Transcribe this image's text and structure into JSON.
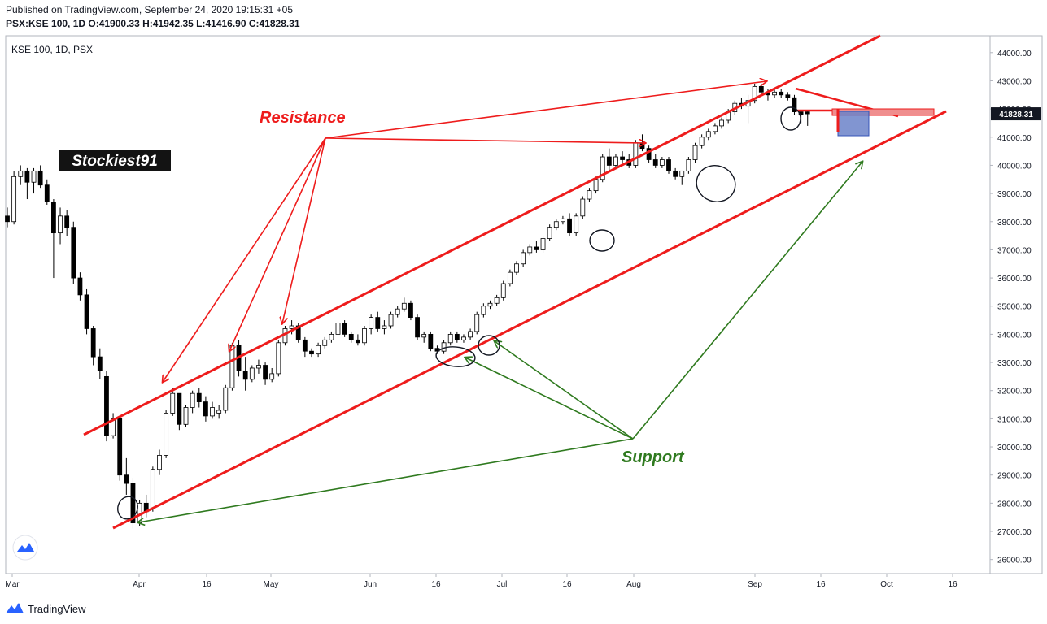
{
  "header": {
    "published": "Published on TradingView.com, September 24, 2020 19:15:31 +05",
    "ohlc": "PSX:KSE 100, 1D O:41900.33 H:41942.35 L:41416.90 C:41828.31"
  },
  "chart_data": {
    "type": "candlestick",
    "title": "KSE 100, 1D, PSX",
    "ylim": [
      25500,
      44600
    ],
    "y_ticks": [
      26000,
      27000,
      28000,
      29000,
      30000,
      31000,
      32000,
      33000,
      34000,
      35000,
      36000,
      37000,
      38000,
      39000,
      40000,
      41000,
      42000,
      43000,
      44000
    ],
    "y_tick_labels": [
      "26000.00",
      "27000.00",
      "28000.00",
      "29000.00",
      "30000.00",
      "31000.00",
      "32000.00",
      "33000.00",
      "34000.00",
      "35000.00",
      "36000.00",
      "37000.00",
      "38000.00",
      "39000.00",
      "40000.00",
      "41000.00",
      "42000.00",
      "43000.00",
      "44000.00"
    ],
    "x_tick_labels": [
      "Mar",
      "Apr",
      "16",
      "May",
      "Jun",
      "16",
      "Jul",
      "16",
      "Aug",
      "Sep",
      "16",
      "Oct",
      "16"
    ],
    "last_price_label": "41828.31",
    "last_price": 41828.31,
    "watermark": "Stockiest91",
    "annotations": {
      "resistance": "Resistance",
      "support": "Support"
    },
    "candles": [
      [
        38200,
        38500,
        37800,
        38000
      ],
      [
        38000,
        39800,
        37900,
        39600
      ],
      [
        39600,
        40000,
        39300,
        39800
      ],
      [
        39800,
        39900,
        38800,
        39400
      ],
      [
        39400,
        39900,
        39000,
        39800
      ],
      [
        39800,
        40000,
        39200,
        39300
      ],
      [
        39300,
        39500,
        38600,
        38700
      ],
      [
        38700,
        38800,
        36000,
        37600
      ],
      [
        37600,
        38500,
        37200,
        38200
      ],
      [
        38200,
        38400,
        37500,
        37800
      ],
      [
        37800,
        38000,
        35800,
        36000
      ],
      [
        36000,
        36200,
        35200,
        35400
      ],
      [
        35400,
        35600,
        34000,
        34200
      ],
      [
        34200,
        34300,
        32900,
        33200
      ],
      [
        33200,
        33500,
        32400,
        32700
      ],
      [
        32500,
        32700,
        30200,
        30400
      ],
      [
        30400,
        31200,
        30300,
        31000
      ],
      [
        31000,
        31100,
        28800,
        29000
      ],
      [
        29000,
        29600,
        28300,
        28700
      ],
      [
        28700,
        28900,
        27100,
        27300
      ],
      [
        27300,
        28100,
        27200,
        28000
      ],
      [
        28000,
        28300,
        27500,
        27700
      ],
      [
        27800,
        29300,
        27700,
        29200
      ],
      [
        29200,
        29900,
        29000,
        29700
      ],
      [
        29700,
        31300,
        29600,
        31200
      ],
      [
        31200,
        32100,
        31100,
        31900
      ],
      [
        31900,
        31900,
        30600,
        30800
      ],
      [
        30800,
        31500,
        30700,
        31400
      ],
      [
        31400,
        32000,
        31200,
        31900
      ],
      [
        31900,
        32100,
        31400,
        31600
      ],
      [
        31600,
        31800,
        30900,
        31100
      ],
      [
        31100,
        31600,
        31000,
        31400
      ],
      [
        31200,
        31500,
        31000,
        31300
      ],
      [
        31300,
        32200,
        31200,
        32100
      ],
      [
        32100,
        33700,
        32000,
        33600
      ],
      [
        33600,
        33800,
        32500,
        32700
      ],
      [
        32700,
        33200,
        32000,
        32400
      ],
      [
        32400,
        32900,
        32300,
        32800
      ],
      [
        32800,
        33100,
        32600,
        32900
      ],
      [
        32900,
        33000,
        32200,
        32400
      ],
      [
        32400,
        32800,
        32300,
        32600
      ],
      [
        32600,
        33800,
        32500,
        33700
      ],
      [
        33700,
        34300,
        33600,
        34200
      ],
      [
        34200,
        34500,
        34000,
        34300
      ],
      [
        34300,
        34400,
        33700,
        33800
      ],
      [
        33800,
        33900,
        33200,
        33400
      ],
      [
        33400,
        33500,
        33200,
        33300
      ],
      [
        33300,
        33700,
        33200,
        33600
      ],
      [
        33600,
        33900,
        33500,
        33800
      ],
      [
        33800,
        34100,
        33700,
        34000
      ],
      [
        34000,
        34500,
        33900,
        34400
      ],
      [
        34400,
        34500,
        33900,
        34000
      ],
      [
        34000,
        34100,
        33700,
        33800
      ],
      [
        33800,
        34000,
        33600,
        33700
      ],
      [
        33700,
        34300,
        33600,
        34200
      ],
      [
        34200,
        34700,
        34000,
        34600
      ],
      [
        34600,
        34800,
        34100,
        34200
      ],
      [
        34200,
        34500,
        34000,
        34300
      ],
      [
        34300,
        34800,
        34200,
        34700
      ],
      [
        34700,
        35000,
        34600,
        34900
      ],
      [
        34900,
        35300,
        34800,
        35100
      ],
      [
        35100,
        35200,
        34500,
        34600
      ],
      [
        34600,
        34700,
        33800,
        33900
      ],
      [
        33900,
        34100,
        33700,
        34000
      ],
      [
        34000,
        34100,
        33400,
        33500
      ],
      [
        33500,
        33600,
        33300,
        33400
      ],
      [
        33400,
        33800,
        33300,
        33700
      ],
      [
        33700,
        34100,
        33600,
        34000
      ],
      [
        34000,
        34100,
        33700,
        33800
      ],
      [
        33800,
        34000,
        33700,
        33900
      ],
      [
        33900,
        34200,
        33800,
        34100
      ],
      [
        34100,
        34800,
        34000,
        34700
      ],
      [
        34700,
        35100,
        34600,
        35000
      ],
      [
        35000,
        35200,
        34900,
        35100
      ],
      [
        35100,
        35400,
        35000,
        35300
      ],
      [
        35300,
        35900,
        35200,
        35800
      ],
      [
        35800,
        36300,
        35700,
        36200
      ],
      [
        36200,
        36600,
        36100,
        36500
      ],
      [
        36500,
        37000,
        36400,
        36900
      ],
      [
        36900,
        37200,
        36800,
        37100
      ],
      [
        37100,
        37300,
        36900,
        37000
      ],
      [
        37000,
        37500,
        36900,
        37400
      ],
      [
        37400,
        37900,
        37300,
        37800
      ],
      [
        37800,
        38100,
        37700,
        38000
      ],
      [
        38000,
        38200,
        37900,
        38100
      ],
      [
        38100,
        38300,
        37500,
        37600
      ],
      [
        37600,
        38300,
        37500,
        38200
      ],
      [
        38200,
        38900,
        38100,
        38800
      ],
      [
        38800,
        39200,
        38700,
        39100
      ],
      [
        39100,
        39600,
        39000,
        39500
      ],
      [
        39500,
        40400,
        39400,
        40300
      ],
      [
        40300,
        40600,
        39800,
        40000
      ],
      [
        40000,
        40400,
        39900,
        40300
      ],
      [
        40300,
        40500,
        40100,
        40200
      ],
      [
        40200,
        40400,
        39900,
        40000
      ],
      [
        40000,
        40900,
        39900,
        40800
      ],
      [
        40800,
        41100,
        40500,
        40600
      ],
      [
        40600,
        40700,
        40100,
        40200
      ],
      [
        40200,
        40400,
        39900,
        40000
      ],
      [
        40000,
        40300,
        39900,
        40200
      ],
      [
        40200,
        40300,
        39700,
        39800
      ],
      [
        39800,
        39900,
        39500,
        39600
      ],
      [
        39600,
        39700,
        39300,
        39800
      ],
      [
        39800,
        40300,
        39700,
        40200
      ],
      [
        40200,
        40800,
        40100,
        40700
      ],
      [
        40700,
        41100,
        40600,
        41000
      ],
      [
        41000,
        41300,
        40900,
        41200
      ],
      [
        41200,
        41500,
        41100,
        41400
      ],
      [
        41400,
        41700,
        41300,
        41600
      ],
      [
        41600,
        42000,
        41500,
        41900
      ],
      [
        41900,
        42300,
        41800,
        42200
      ],
      [
        42200,
        42400,
        42000,
        42100
      ],
      [
        42100,
        42500,
        41500,
        42300
      ],
      [
        42300,
        42900,
        42200,
        42800
      ],
      [
        42800,
        42900,
        42500,
        42600
      ],
      [
        42600,
        42700,
        42300,
        42500
      ],
      [
        42500,
        42700,
        42400,
        42600
      ],
      [
        42600,
        42700,
        42400,
        42500
      ],
      [
        42500,
        42600,
        42300,
        42400
      ],
      [
        42400,
        42500,
        41800,
        41900
      ],
      [
        41900,
        41950,
        41500,
        41800
      ],
      [
        41900,
        41940,
        41400,
        41828
      ]
    ],
    "shapes": {
      "resistance_line": [
        [
          0.77,
          30400
        ],
        [
          26.1,
          44600
        ]
      ],
      "support_line": [
        [
          1.5,
          27100
        ],
        [
          38.3,
          42200
        ]
      ],
      "sep_triangle_upper": [
        [
          36.2,
          42900
        ],
        [
          37.5,
          42200
        ]
      ],
      "sep_triangle_lower": [
        [
          36.2,
          42200
        ],
        [
          37.5,
          42200
        ]
      ]
    }
  }
}
